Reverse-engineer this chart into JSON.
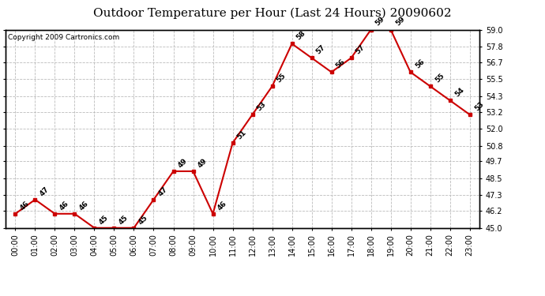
{
  "title": "Outdoor Temperature per Hour (Last 24 Hours) 20090602",
  "copyright": "Copyright 2009 Cartronics.com",
  "hours": [
    "00:00",
    "01:00",
    "02:00",
    "03:00",
    "04:00",
    "05:00",
    "06:00",
    "07:00",
    "08:00",
    "09:00",
    "10:00",
    "11:00",
    "12:00",
    "13:00",
    "14:00",
    "15:00",
    "16:00",
    "17:00",
    "18:00",
    "19:00",
    "20:00",
    "21:00",
    "22:00",
    "23:00"
  ],
  "temps": [
    46,
    47,
    46,
    46,
    45,
    45,
    45,
    47,
    49,
    49,
    46,
    51,
    53,
    55,
    58,
    57,
    56,
    57,
    59,
    59,
    56,
    55,
    54,
    53
  ],
  "ylim": [
    45.0,
    59.0
  ],
  "yticks": [
    45.0,
    46.2,
    47.3,
    48.5,
    49.7,
    50.8,
    52.0,
    53.2,
    54.3,
    55.5,
    56.7,
    57.8,
    59.0
  ],
  "line_color": "#cc0000",
  "marker_color": "#cc0000",
  "bg_color": "#ffffff",
  "plot_bg_color": "#ffffff",
  "grid_color": "#bbbbbb",
  "title_fontsize": 11,
  "copyright_fontsize": 6.5,
  "label_fontsize": 6.5,
  "tick_fontsize": 7
}
